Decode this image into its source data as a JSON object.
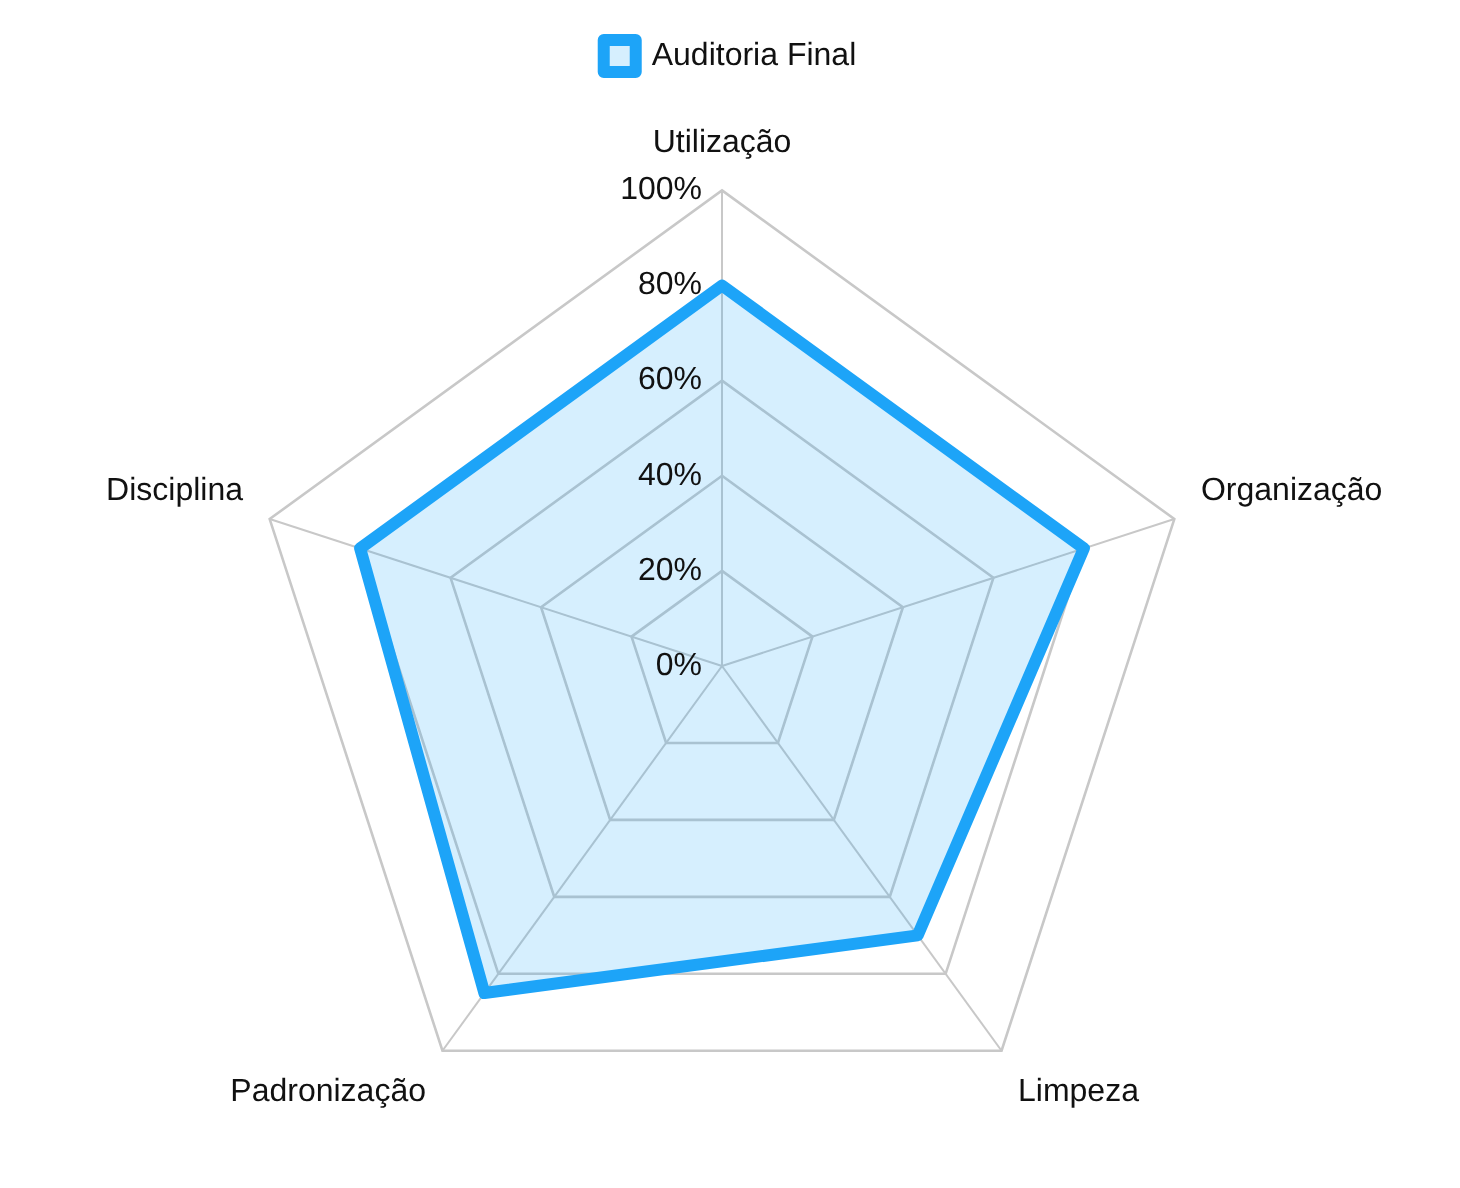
{
  "chart_data": {
    "type": "radar",
    "categories": [
      "Utilização",
      "Organização",
      "Limpeza",
      "Padronização",
      "Disciplina"
    ],
    "series": [
      {
        "name": "Auditoria Final",
        "color": "#1da4f8",
        "values": [
          80,
          80,
          70,
          85,
          80
        ]
      }
    ],
    "ylim": [
      0,
      100
    ],
    "yticks": [
      {
        "value": 0,
        "label": "0%"
      },
      {
        "value": 20,
        "label": "20%"
      },
      {
        "value": 40,
        "label": "40%"
      },
      {
        "value": 60,
        "label": "60%"
      },
      {
        "value": 80,
        "label": "80%"
      },
      {
        "value": 100,
        "label": "100%"
      }
    ],
    "grid": true,
    "legend": "top",
    "marker": "none"
  }
}
